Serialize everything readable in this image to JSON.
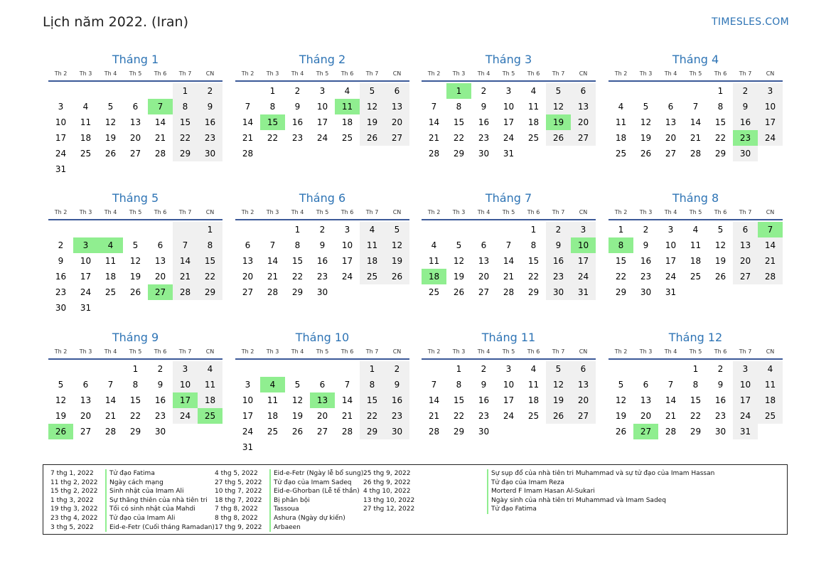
{
  "header": {
    "title": "Lịch năm 2022. (Iran)",
    "brand": "TIMESLES.COM"
  },
  "weekdays": [
    "Th 2",
    "Th 3",
    "Th 4",
    "Th 5",
    "Th 6",
    "Th 7",
    "CN"
  ],
  "months": [
    {
      "name": "Tháng 1",
      "offset": 5,
      "days": 31,
      "holidays": [
        7
      ]
    },
    {
      "name": "Tháng 2",
      "offset": 1,
      "days": 28,
      "holidays": [
        11,
        15
      ]
    },
    {
      "name": "Tháng 3",
      "offset": 1,
      "days": 31,
      "holidays": [
        1,
        19
      ]
    },
    {
      "name": "Tháng 4",
      "offset": 4,
      "days": 30,
      "holidays": [
        23
      ]
    },
    {
      "name": "Tháng 5",
      "offset": 6,
      "days": 31,
      "holidays": [
        3,
        4,
        27
      ]
    },
    {
      "name": "Tháng 6",
      "offset": 2,
      "days": 30,
      "holidays": []
    },
    {
      "name": "Tháng 7",
      "offset": 4,
      "days": 31,
      "holidays": [
        10,
        18
      ]
    },
    {
      "name": "Tháng 8",
      "offset": 0,
      "days": 31,
      "holidays": [
        7,
        8
      ]
    },
    {
      "name": "Tháng 9",
      "offset": 3,
      "days": 30,
      "holidays": [
        17,
        25,
        26
      ]
    },
    {
      "name": "Tháng 10",
      "offset": 5,
      "days": 31,
      "holidays": [
        4,
        13
      ]
    },
    {
      "name": "Tháng 11",
      "offset": 1,
      "days": 30,
      "holidays": []
    },
    {
      "name": "Tháng 12",
      "offset": 3,
      "days": 31,
      "holidays": [
        27
      ]
    }
  ],
  "legend": [
    {
      "date": "7 thg 1, 2022",
      "name": "Tử đạo Fatima"
    },
    {
      "date": "11 thg 2, 2022",
      "name": "Ngày cách mạng"
    },
    {
      "date": "15 thg 2, 2022",
      "name": "Sinh nhật của Imam Ali"
    },
    {
      "date": "1 thg 3, 2022",
      "name": "Sự thăng thiên của nhà tiên tri"
    },
    {
      "date": "19 thg 3, 2022",
      "name": "Tối có sinh nhật của Mahdi"
    },
    {
      "date": "23 thg 4, 2022",
      "name": "Tử đạo của Imam Ali"
    },
    {
      "date": "3 thg 5, 2022",
      "name": "Eid-e-Fetr (Cuối tháng Ramadan)"
    },
    {
      "date": "4 thg 5, 2022",
      "name": "Eid-e-Fetr (Ngày lễ bổ sung)"
    },
    {
      "date": "27 thg 5, 2022",
      "name": "Tử đạo của Imam Sadeq"
    },
    {
      "date": "10 thg 7, 2022",
      "name": "Eid-e-Ghorban (Lễ tế thần)"
    },
    {
      "date": "18 thg 7, 2022",
      "name": "Bị phân bội"
    },
    {
      "date": "7 thg 8, 2022",
      "name": "Tassoua"
    },
    {
      "date": "8 thg 8, 2022",
      "name": "Ashura (Ngày dự kiến)"
    },
    {
      "date": "17 thg 9, 2022",
      "name": "Arbaeen"
    },
    {
      "date": "25 thg 9, 2022",
      "name": "Sự sụp đổ của nhà tiên tri Muhammad và sự tử đạo của Imam Hassan"
    },
    {
      "date": "26 thg 9, 2022",
      "name": "Tử đạo của Imam Reza"
    },
    {
      "date": "4 thg 10, 2022",
      "name": "Morterd F Imam Hasan Al-Sukari"
    },
    {
      "date": "13 thg 10, 2022",
      "name": "Ngày sinh của nhà tiên tri Muhammad và Imam Sadeq"
    },
    {
      "date": "27 thg 12, 2022",
      "name": "Tử đạo Fatima"
    }
  ]
}
